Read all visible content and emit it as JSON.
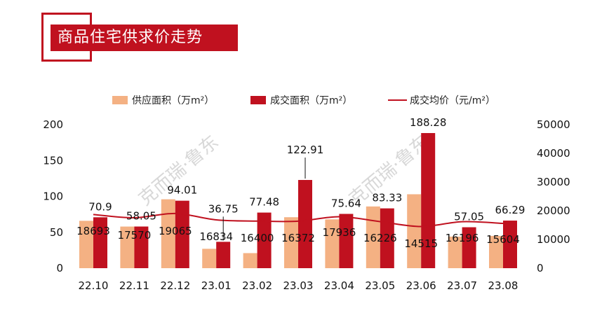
{
  "title": "商品住宅供求价走势",
  "watermark": "克而瑞·鲁东",
  "colors": {
    "supply": "#f4b183",
    "sales": "#c0111f",
    "price": "#c0111f",
    "accent": "#c0111f"
  },
  "chart_data": {
    "type": "bar",
    "categories": [
      "22.10",
      "22.11",
      "22.12",
      "23.01",
      "23.02",
      "23.03",
      "23.04",
      "23.05",
      "23.06",
      "23.07",
      "23.08"
    ],
    "series": [
      {
        "name": "供应面积（万m²）",
        "type": "bar",
        "axis": "left",
        "values": [
          66,
          58,
          96,
          27,
          21,
          71,
          68,
          86,
          103,
          44,
          45
        ]
      },
      {
        "name": "成交面积（万m²）",
        "type": "bar",
        "axis": "left",
        "values": [
          70.9,
          58.05,
          94.01,
          36.75,
          77.48,
          122.91,
          75.64,
          83.33,
          188.28,
          57.05,
          66.29
        ]
      },
      {
        "name": "成交均价（元/m²）",
        "type": "line",
        "axis": "right",
        "values": [
          18693,
          17570,
          19065,
          16834,
          16400,
          16372,
          17936,
          16226,
          14515,
          16196,
          15604
        ]
      }
    ],
    "left_ticks": [
      "0",
      "50",
      "100",
      "150",
      "200"
    ],
    "right_ticks": [
      "0",
      "10000",
      "20000",
      "30000",
      "40000",
      "50000"
    ],
    "ylim_left": [
      0,
      200
    ],
    "ylim_right": [
      0,
      50000
    ],
    "grid": false,
    "legend_position": "top"
  }
}
